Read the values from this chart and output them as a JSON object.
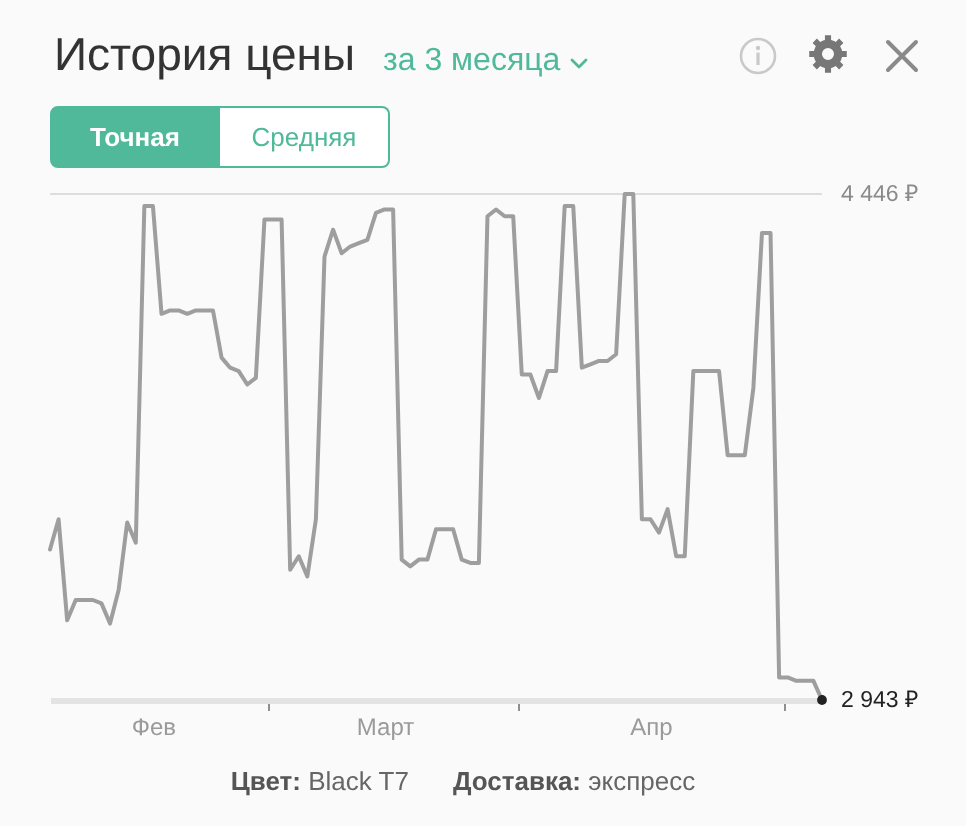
{
  "chart_data": {
    "type": "line",
    "title": "История цены",
    "subtitle": "за 3 месяца",
    "annotations": [
      "Точная",
      "Средняя",
      "Цвет: Black T7",
      "Доставка: экспресс"
    ],
    "categories": [
      null,
      null,
      null,
      null,
      null,
      null,
      null,
      null,
      null,
      null,
      null,
      null,
      "Фев",
      null,
      null,
      null,
      null,
      null,
      null,
      null,
      null,
      null,
      null,
      null,
      null,
      null,
      null,
      null,
      null,
      null,
      null,
      null,
      null,
      null,
      null,
      null,
      null,
      null,
      null,
      "Март",
      null,
      null,
      null,
      null,
      null,
      null,
      null,
      null,
      null,
      null,
      null,
      null,
      null,
      null,
      null,
      null,
      null,
      null,
      null,
      null,
      null,
      null,
      null,
      null,
      null,
      null,
      null,
      null,
      null,
      null,
      "Апр",
      null,
      null,
      null,
      null,
      null,
      null,
      null,
      null,
      null,
      null,
      null,
      null,
      null,
      null,
      null,
      null,
      null,
      null,
      null,
      null
    ],
    "ylim": [
      2943,
      4446
    ],
    "yticks": [
      {
        "value": 2943,
        "label": "2 943 ₽"
      },
      {
        "value": 4446,
        "label": "4 446 ₽"
      }
    ],
    "ref_lines": [
      {
        "axis": "y",
        "value": 4446,
        "color": "#dddddd"
      }
    ],
    "series": [
      {
        "color": "#9e9e9e",
        "values": [
          3390,
          3480,
          3180,
          3240,
          3240,
          3240,
          3230,
          3170,
          3270,
          3470,
          3410,
          4410,
          4410,
          4090,
          4100,
          4100,
          4090,
          4100,
          4100,
          4100,
          3960,
          3930,
          3920,
          3880,
          3900,
          4370,
          4370,
          4370,
          3330,
          3370,
          3310,
          3480,
          4260,
          4340,
          4270,
          4290,
          4300,
          4310,
          4390,
          4400,
          4400,
          3360,
          3340,
          3360,
          3360,
          3450,
          3450,
          3450,
          3360,
          3350,
          3350,
          4380,
          4400,
          4380,
          4380,
          3910,
          3910,
          3840,
          3920,
          3920,
          4410,
          4410,
          3930,
          3940,
          3950,
          3950,
          3970,
          4446,
          4446,
          3480,
          3480,
          3440,
          3510,
          3370,
          3370,
          3920,
          3920,
          3920,
          3920,
          3670,
          3670,
          3670,
          3870,
          4330,
          4330,
          3010,
          3010,
          3000,
          3000,
          3000,
          2943
        ]
      },
      {
        "type": "scatter",
        "color": "#222222",
        "values": [
          null,
          null,
          null,
          null,
          null,
          null,
          null,
          null,
          null,
          null,
          null,
          null,
          null,
          null,
          null,
          null,
          null,
          null,
          null,
          null,
          null,
          null,
          null,
          null,
          null,
          null,
          null,
          null,
          null,
          null,
          null,
          null,
          null,
          null,
          null,
          null,
          null,
          null,
          null,
          null,
          null,
          null,
          null,
          null,
          null,
          null,
          null,
          null,
          null,
          null,
          null,
          null,
          null,
          null,
          null,
          null,
          null,
          null,
          null,
          null,
          null,
          null,
          null,
          null,
          null,
          null,
          null,
          null,
          null,
          null,
          null,
          null,
          null,
          null,
          null,
          null,
          null,
          null,
          null,
          null,
          null,
          null,
          null,
          null,
          null,
          null,
          null,
          null,
          null,
          null,
          2943
        ]
      }
    ]
  }
}
